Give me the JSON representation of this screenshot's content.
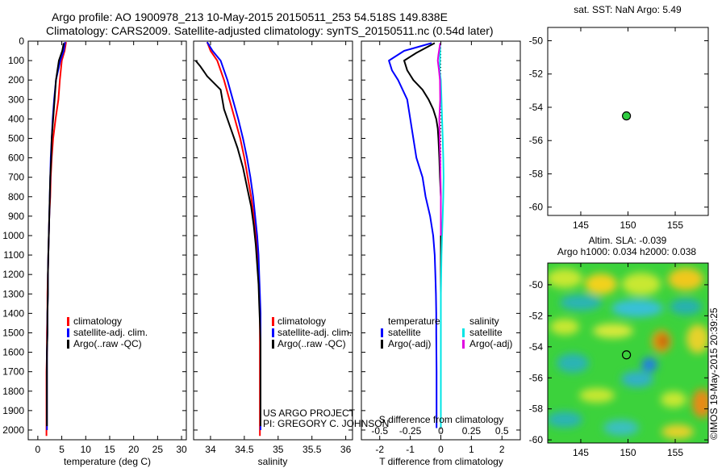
{
  "header": {
    "line1": "Argo profile: AO 1900978_213 10-May-2015 20150511_253 54.518S 149.838E",
    "line2": "Climatology: CARS2009. Satellite-adjusted climatology: synTS_20150511.nc (0.54d later)"
  },
  "credits": {
    "project": "US ARGO PROJECT",
    "pi": "PI: GREGORY C. JOHNSON",
    "imos_stamp": "©IMOS 19-May-2015 20:39:25"
  },
  "colors": {
    "climatology": "#ff0000",
    "satellite": "#0000ff",
    "argo": "#000000",
    "salinity_satellite": "#00e5e5",
    "salinity_argo": "#e000e0",
    "sst_marker": "#2ecc40"
  },
  "chart_data": [
    {
      "id": "temperature",
      "type": "line",
      "xlabel": "temperature (deg C)",
      "ylabel": "",
      "xlim": [
        -2,
        31
      ],
      "ylim": [
        2050,
        0
      ],
      "xticks": [
        0,
        5,
        10,
        15,
        20,
        25,
        30
      ],
      "xtick_labels": [
        "0",
        "5",
        "10",
        "15",
        "20",
        "25",
        "30"
      ],
      "yticks": [
        0,
        100,
        200,
        300,
        400,
        500,
        600,
        700,
        800,
        900,
        1000,
        1100,
        1200,
        1300,
        1400,
        1500,
        1600,
        1700,
        1800,
        1900,
        2000
      ],
      "ytick_labels": [
        "0",
        "100",
        "200",
        "300",
        "400",
        "500",
        "600",
        "700",
        "800",
        "900",
        "1000",
        "1100",
        "1200",
        "1300",
        "1400",
        "1500",
        "1600",
        "1700",
        "1800",
        "1900",
        "2000"
      ],
      "legend": [
        "climatology",
        "satellite-adj. clim.",
        "Argo(..raw -QC)"
      ],
      "series": [
        {
          "name": "climatology",
          "color": "#ff0000",
          "x": [
            5.9,
            5.6,
            5.0,
            4.6,
            4.3,
            3.7,
            3.2,
            2.9,
            2.7,
            2.6,
            2.4,
            2.3,
            2.2,
            2.1,
            2.0,
            2.0,
            1.9,
            1.9,
            1.8,
            1.8,
            1.8
          ],
          "y": [
            5,
            50,
            100,
            200,
            300,
            400,
            500,
            600,
            700,
            800,
            900,
            1000,
            1100,
            1200,
            1300,
            1400,
            1500,
            1600,
            1700,
            1800,
            2030
          ]
        },
        {
          "name": "satellite-adj. clim.",
          "color": "#0000ff",
          "x": [
            5.7,
            5.4,
            4.7,
            3.8,
            3.4,
            3.1,
            2.9,
            2.7,
            2.6,
            2.5,
            2.4,
            2.3,
            2.2,
            2.1,
            2.1,
            2.0,
            2.0,
            1.9,
            1.9,
            1.9,
            1.9
          ],
          "y": [
            5,
            50,
            100,
            200,
            300,
            400,
            500,
            600,
            700,
            800,
            900,
            1000,
            1100,
            1200,
            1300,
            1400,
            1500,
            1600,
            1700,
            1800,
            2000
          ]
        },
        {
          "name": "Argo(..raw -QC)",
          "color": "#000000",
          "x": [
            5.4,
            5.1,
            4.4,
            3.8,
            3.5,
            3.2,
            2.9,
            2.8,
            2.6,
            2.5,
            2.4,
            2.3,
            2.2,
            2.1,
            2.1,
            2.0,
            2.0,
            1.9,
            1.9,
            1.9
          ],
          "y": [
            10,
            50,
            100,
            200,
            300,
            400,
            500,
            600,
            700,
            800,
            900,
            1000,
            1100,
            1200,
            1300,
            1400,
            1500,
            1600,
            1800,
            1980
          ]
        }
      ]
    },
    {
      "id": "salinity",
      "type": "line",
      "xlabel": "salinity",
      "ylabel": "",
      "xlim": [
        33.75,
        36.1
      ],
      "ylim": [
        2050,
        0
      ],
      "xticks": [
        34,
        34.5,
        35,
        35.5,
        36
      ],
      "xtick_labels": [
        "34",
        "34.5",
        "35",
        "35.5",
        "36"
      ],
      "legend": [
        "climatology",
        "satellite-adj. clim.",
        "Argo(..raw -QC)"
      ],
      "series": [
        {
          "name": "climatology",
          "color": "#ff0000",
          "x": [
            33.95,
            34.0,
            34.1,
            34.2,
            34.28,
            34.36,
            34.44,
            34.5,
            34.55,
            34.6,
            34.64,
            34.67,
            34.69,
            34.71,
            34.72,
            34.73,
            34.73,
            34.73,
            34.73,
            34.73,
            34.73
          ],
          "y": [
            5,
            50,
            100,
            200,
            300,
            400,
            500,
            600,
            700,
            800,
            900,
            1000,
            1100,
            1200,
            1300,
            1400,
            1500,
            1600,
            1700,
            1800,
            2030
          ]
        },
        {
          "name": "satellite-adj. clim.",
          "color": "#0000ff",
          "x": [
            33.95,
            34.03,
            34.15,
            34.25,
            34.33,
            34.41,
            34.48,
            34.54,
            34.59,
            34.63,
            34.66,
            34.69,
            34.71,
            34.72,
            34.73,
            34.74,
            34.74,
            34.74,
            34.74,
            34.74,
            34.74
          ],
          "y": [
            5,
            50,
            100,
            200,
            300,
            400,
            500,
            600,
            700,
            800,
            900,
            1000,
            1100,
            1200,
            1300,
            1400,
            1500,
            1600,
            1700,
            1800,
            2000
          ]
        },
        {
          "name": "Argo(..raw -QC)",
          "color": "#000000",
          "x": [
            33.78,
            33.85,
            33.95,
            34.15,
            34.2,
            34.3,
            34.4,
            34.48,
            34.54,
            34.6,
            34.64,
            34.67,
            34.69,
            34.71,
            34.72,
            34.73,
            34.74,
            34.74,
            34.74,
            34.74
          ],
          "y": [
            100,
            130,
            180,
            250,
            350,
            450,
            550,
            650,
            750,
            850,
            950,
            1050,
            1150,
            1250,
            1350,
            1450,
            1550,
            1650,
            1800,
            1980
          ]
        }
      ]
    },
    {
      "id": "difference",
      "type": "line",
      "xlabel": "T difference from climatology",
      "xlabel_top": "S difference from climatology",
      "xlim": [
        -2.6,
        2.6
      ],
      "ylim": [
        2050,
        0
      ],
      "xticks": [
        -2,
        -1,
        0,
        1,
        2
      ],
      "xtick_labels": [
        "-2",
        "-1",
        "0",
        "1",
        "2"
      ],
      "xticks_top": [
        -0.5,
        -0.25,
        0,
        0.25,
        0.5
      ],
      "xtick_labels_top": [
        "-0.5",
        "-0.25",
        "0",
        "0.25",
        "0.5"
      ],
      "legend_temperature": {
        "title": "temperature",
        "items": [
          "satellite",
          "Argo(-adj)"
        ]
      },
      "legend_salinity": {
        "title": "salinity",
        "items": [
          "satellite",
          "Argo(-adj)"
        ]
      },
      "series": [
        {
          "name": "temperature satellite",
          "color": "#0000ff",
          "x": [
            -0.3,
            -1.2,
            -1.7,
            -1.6,
            -1.4,
            -1.1,
            -1.0,
            -0.9,
            -0.8,
            -0.6,
            -0.5,
            -0.35,
            -0.25,
            -0.2,
            -0.18,
            -0.16,
            -0.15,
            -0.15,
            -0.14,
            -0.14
          ],
          "y": [
            10,
            50,
            100,
            150,
            200,
            300,
            400,
            500,
            600,
            700,
            800,
            900,
            1000,
            1100,
            1200,
            1300,
            1400,
            1500,
            1700,
            1990
          ]
        },
        {
          "name": "temperature Argo(-adj)",
          "color": "#000000",
          "x": [
            -0.2,
            -0.8,
            -1.2,
            -1.1,
            -0.9,
            -0.6,
            -0.4,
            -0.25,
            -0.15,
            -0.1,
            -0.08,
            -0.05,
            -0.03,
            0.0,
            0.0,
            0.0,
            0.0,
            0.0,
            0.0
          ],
          "y": [
            10,
            60,
            100,
            150,
            200,
            250,
            300,
            350,
            400,
            450,
            500,
            600,
            700,
            800,
            1000,
            1200,
            1400,
            1600,
            1990
          ]
        },
        {
          "name": "salinity satellite",
          "color": "#00e5e5",
          "x": [
            -0.02,
            -0.03,
            -0.04,
            0.0,
            0.02,
            0.04,
            0.06,
            0.08,
            0.09,
            0.08,
            0.06,
            0.04,
            0.02,
            0.01,
            0.0,
            0.0,
            0.0,
            0.0,
            0.0
          ],
          "y": [
            10,
            100,
            150,
            200,
            300,
            400,
            500,
            600,
            700,
            800,
            900,
            1000,
            1100,
            1200,
            1300,
            1400,
            1500,
            1700,
            1990
          ]
        },
        {
          "name": "salinity Argo(-adj)",
          "color": "#e000e0",
          "x": [
            -0.02,
            -0.08,
            -0.1,
            -0.06,
            -0.03,
            -0.02,
            -0.05,
            -0.04,
            -0.02,
            -0.01,
            0.0,
            0.0,
            0.0
          ],
          "y": [
            10,
            70,
            100,
            150,
            200,
            300,
            400,
            500,
            600,
            700,
            800,
            900,
            1000
          ]
        }
      ]
    },
    {
      "id": "sst",
      "type": "scatter",
      "title": "sat. SST: NaN Argo: 5.49",
      "xlim": [
        141.5,
        158.5
      ],
      "ylim": [
        -60.5,
        -49.2
      ],
      "xticks": [
        145,
        150,
        155
      ],
      "xtick_labels": [
        "145",
        "150",
        "155"
      ],
      "yticks": [
        -50,
        -52,
        -54,
        -56,
        -58,
        -60
      ],
      "ytick_labels": [
        "-50",
        "-52",
        "-54",
        "-56",
        "-58",
        "-60"
      ],
      "points": [
        {
          "x": 149.838,
          "y": -54.518
        }
      ]
    },
    {
      "id": "sla",
      "type": "heatmap",
      "title_line1": "Altim. SLA: -0.039",
      "title_line2": "Argo h1000: 0.034 h2000: 0.038",
      "xlim": [
        141.5,
        158.5
      ],
      "ylim": [
        -60.2,
        -48.6
      ],
      "xticks": [
        145,
        150,
        155
      ],
      "xtick_labels": [
        "145",
        "150",
        "155"
      ],
      "yticks": [
        -50,
        -52,
        -54,
        -56,
        -58,
        -60
      ],
      "ytick_labels": [
        "-50",
        "-52",
        "-54",
        "-56",
        "-58",
        "-60"
      ],
      "points": [
        {
          "x": 149.838,
          "y": -54.518
        }
      ]
    }
  ]
}
